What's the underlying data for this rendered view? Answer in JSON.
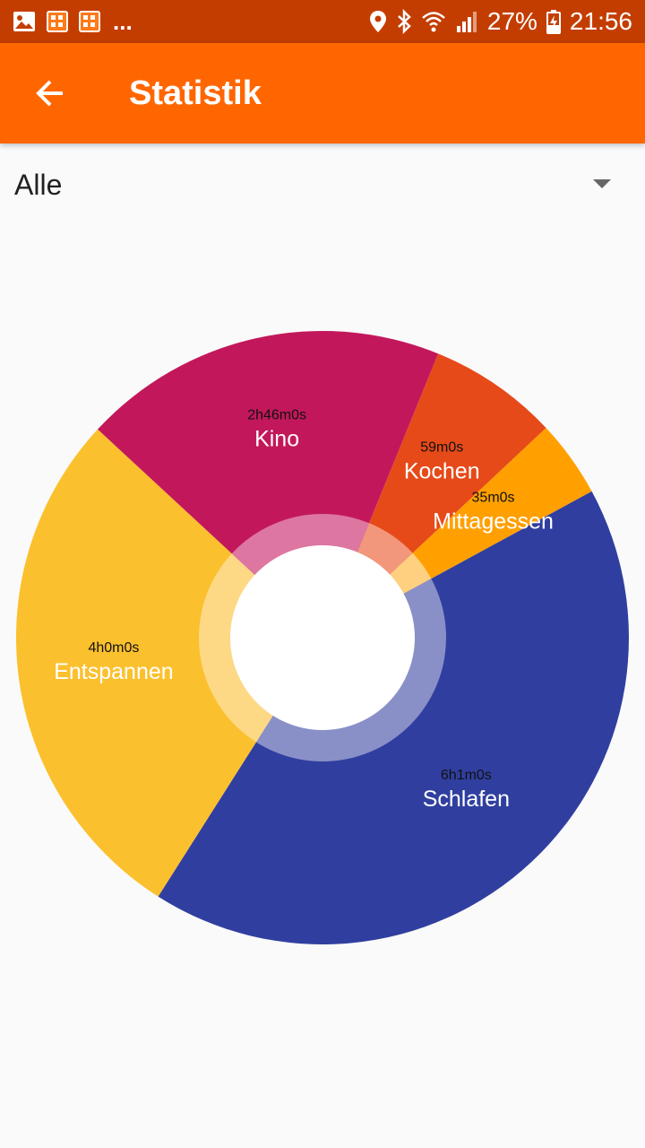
{
  "status_bar": {
    "battery": "27%",
    "time": "21:56",
    "more": "..."
  },
  "app_bar": {
    "title": "Statistik"
  },
  "filter": {
    "selected": "Alle"
  },
  "colors": {
    "app_bar": "#ff6600",
    "status_bar": "#c43d00"
  },
  "chart_data": {
    "type": "pie",
    "style": "donut",
    "slices": [
      {
        "name": "Schlafen",
        "time": "6h1m0s",
        "minutes": 361,
        "color": "#303f9f",
        "inner": "#8990c8"
      },
      {
        "name": "Entspannen",
        "time": "4h0m0s",
        "minutes": 240,
        "color": "#fbc02d",
        "inner": "#fdd986"
      },
      {
        "name": "Kino",
        "time": "2h46m0s",
        "minutes": 166,
        "color": "#c2185b",
        "inner": "#dd76a0"
      },
      {
        "name": "Kochen",
        "time": "59m0s",
        "minutes": 59,
        "color": "#e64a19",
        "inner": "#f2977b"
      },
      {
        "name": "Mittagessen",
        "time": "35m0s",
        "minutes": 35,
        "color": "#ffa000",
        "inner": "#ffd07f"
      }
    ]
  }
}
